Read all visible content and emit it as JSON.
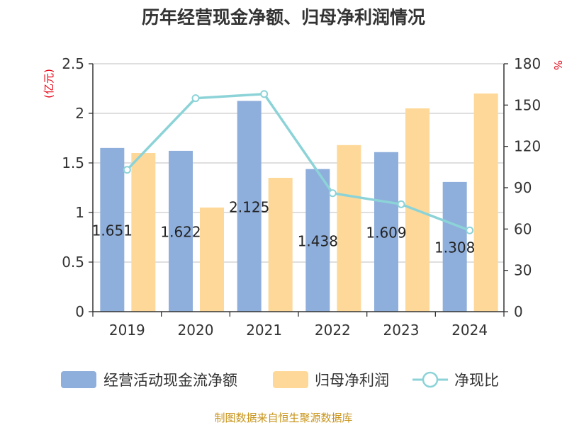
{
  "chart_data": {
    "type": "bar",
    "title": "历年经营现金净额、归母净利润情况",
    "categories": [
      "2019",
      "2020",
      "2021",
      "2022",
      "2023",
      "2024"
    ],
    "series": [
      {
        "name": "经营活动现金流净额",
        "kind": "bar",
        "axis": "left",
        "color": "#8eaedb",
        "values": [
          1.651,
          1.622,
          2.125,
          1.438,
          1.609,
          1.308
        ],
        "labels": [
          "1.651",
          "1.622",
          "2.125",
          "1.438",
          "1.609",
          "1.308"
        ]
      },
      {
        "name": "归母净利润",
        "kind": "bar",
        "axis": "left",
        "color": "#fed899",
        "values": [
          1.6,
          1.05,
          1.35,
          1.68,
          2.05,
          2.2
        ]
      },
      {
        "name": "净现比",
        "kind": "line",
        "axis": "right",
        "color": "#8cd3d8",
        "values": [
          103,
          155,
          158,
          86,
          78,
          59
        ]
      }
    ],
    "left_axis": {
      "unit": "(亿元)",
      "ylim": [
        0,
        2.5
      ],
      "ticks": [
        "0",
        "0.5",
        "1",
        "1.5",
        "2",
        "2.5"
      ]
    },
    "right_axis": {
      "unit": "%",
      "ylim": [
        0,
        180
      ],
      "ticks": [
        "0",
        "30",
        "60",
        "90",
        "120",
        "150",
        "180"
      ]
    },
    "grid": true,
    "legend": "bottom"
  },
  "source": "制图数据来自恒生聚源数据库"
}
